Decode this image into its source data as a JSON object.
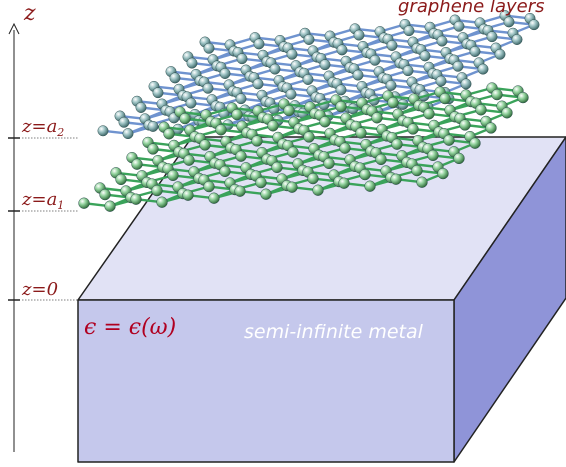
{
  "axis": {
    "name": "z",
    "color": "#8b1a1a"
  },
  "levels": [
    {
      "label": "z=a",
      "subscript": "2"
    },
    {
      "label": "z=a",
      "subscript": "1"
    },
    {
      "label": "z=0",
      "subscript": ""
    }
  ],
  "layers_label": "graphene layers",
  "metal": {
    "permittivity": "ϵ = ϵ(ω)",
    "label": "semi-infinite metal",
    "front_color": "#c5c8ec",
    "top_color": "#dedff4",
    "side_color": "#8f94d8"
  },
  "lattice": {
    "upper_bond_color": "#6f93cf",
    "lower_bond_color": "#3aa35a",
    "atom_color": "#7faeb0"
  }
}
